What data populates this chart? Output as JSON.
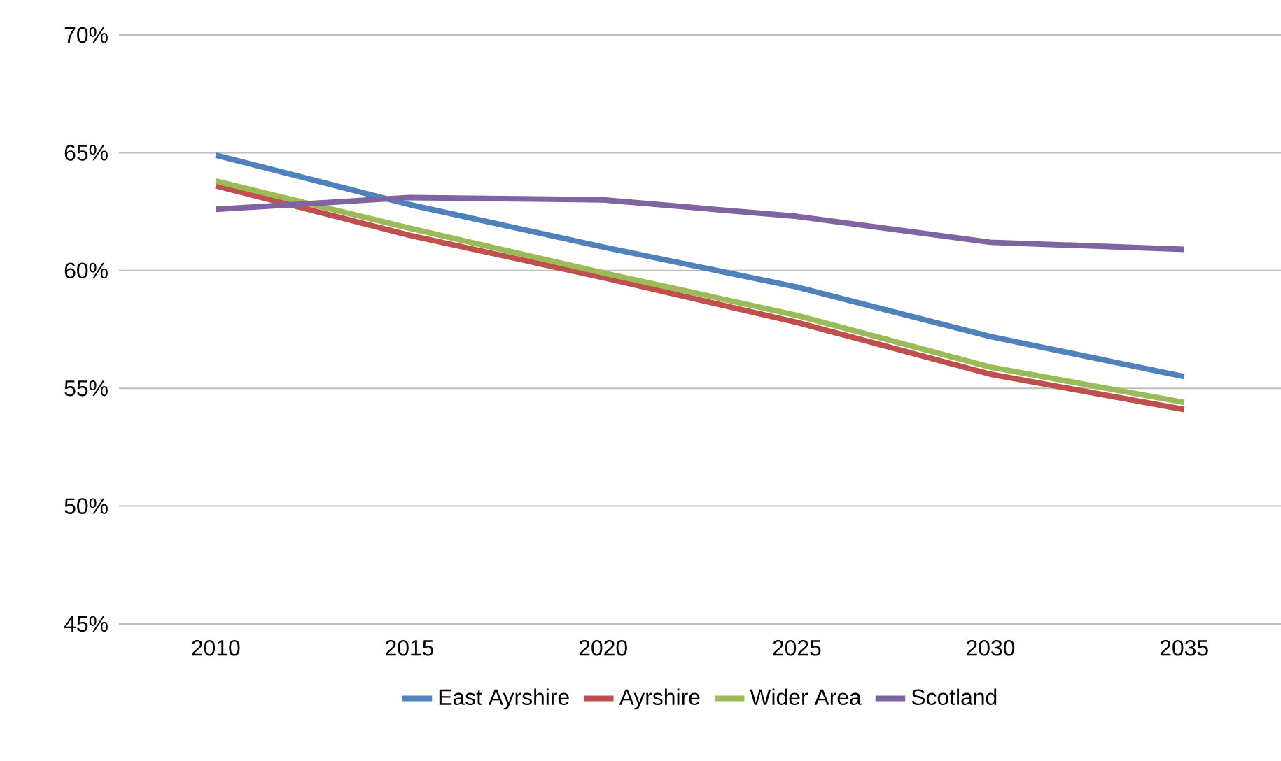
{
  "chart_data": {
    "type": "line",
    "categories": [
      "2010",
      "2015",
      "2020",
      "2025",
      "2030",
      "2035"
    ],
    "series": [
      {
        "name": "East Ayrshire",
        "color": "#4f81bd",
        "values": [
          64.9,
          62.8,
          61.0,
          59.3,
          57.2,
          55.5
        ]
      },
      {
        "name": "Ayrshire",
        "color": "#c0504d",
        "values": [
          63.6,
          61.5,
          59.7,
          57.8,
          55.6,
          54.1
        ]
      },
      {
        "name": "Wider Area",
        "color": "#9bbb59",
        "values": [
          63.8,
          61.8,
          59.9,
          58.1,
          55.9,
          54.4
        ]
      },
      {
        "name": "Scotland",
        "color": "#8064a2",
        "values": [
          62.6,
          63.1,
          63.0,
          62.3,
          61.2,
          60.9
        ]
      }
    ],
    "ylim": [
      45,
      70
    ],
    "yticks": [
      {
        "value": 45,
        "label": "45%"
      },
      {
        "value": 50,
        "label": "50%"
      },
      {
        "value": 55,
        "label": "55%"
      },
      {
        "value": 60,
        "label": "60%"
      },
      {
        "value": 65,
        "label": "65%"
      },
      {
        "value": 70,
        "label": "70%"
      }
    ],
    "grid": "y",
    "legend": "bottom",
    "marker": "none",
    "line_style": "solid"
  }
}
